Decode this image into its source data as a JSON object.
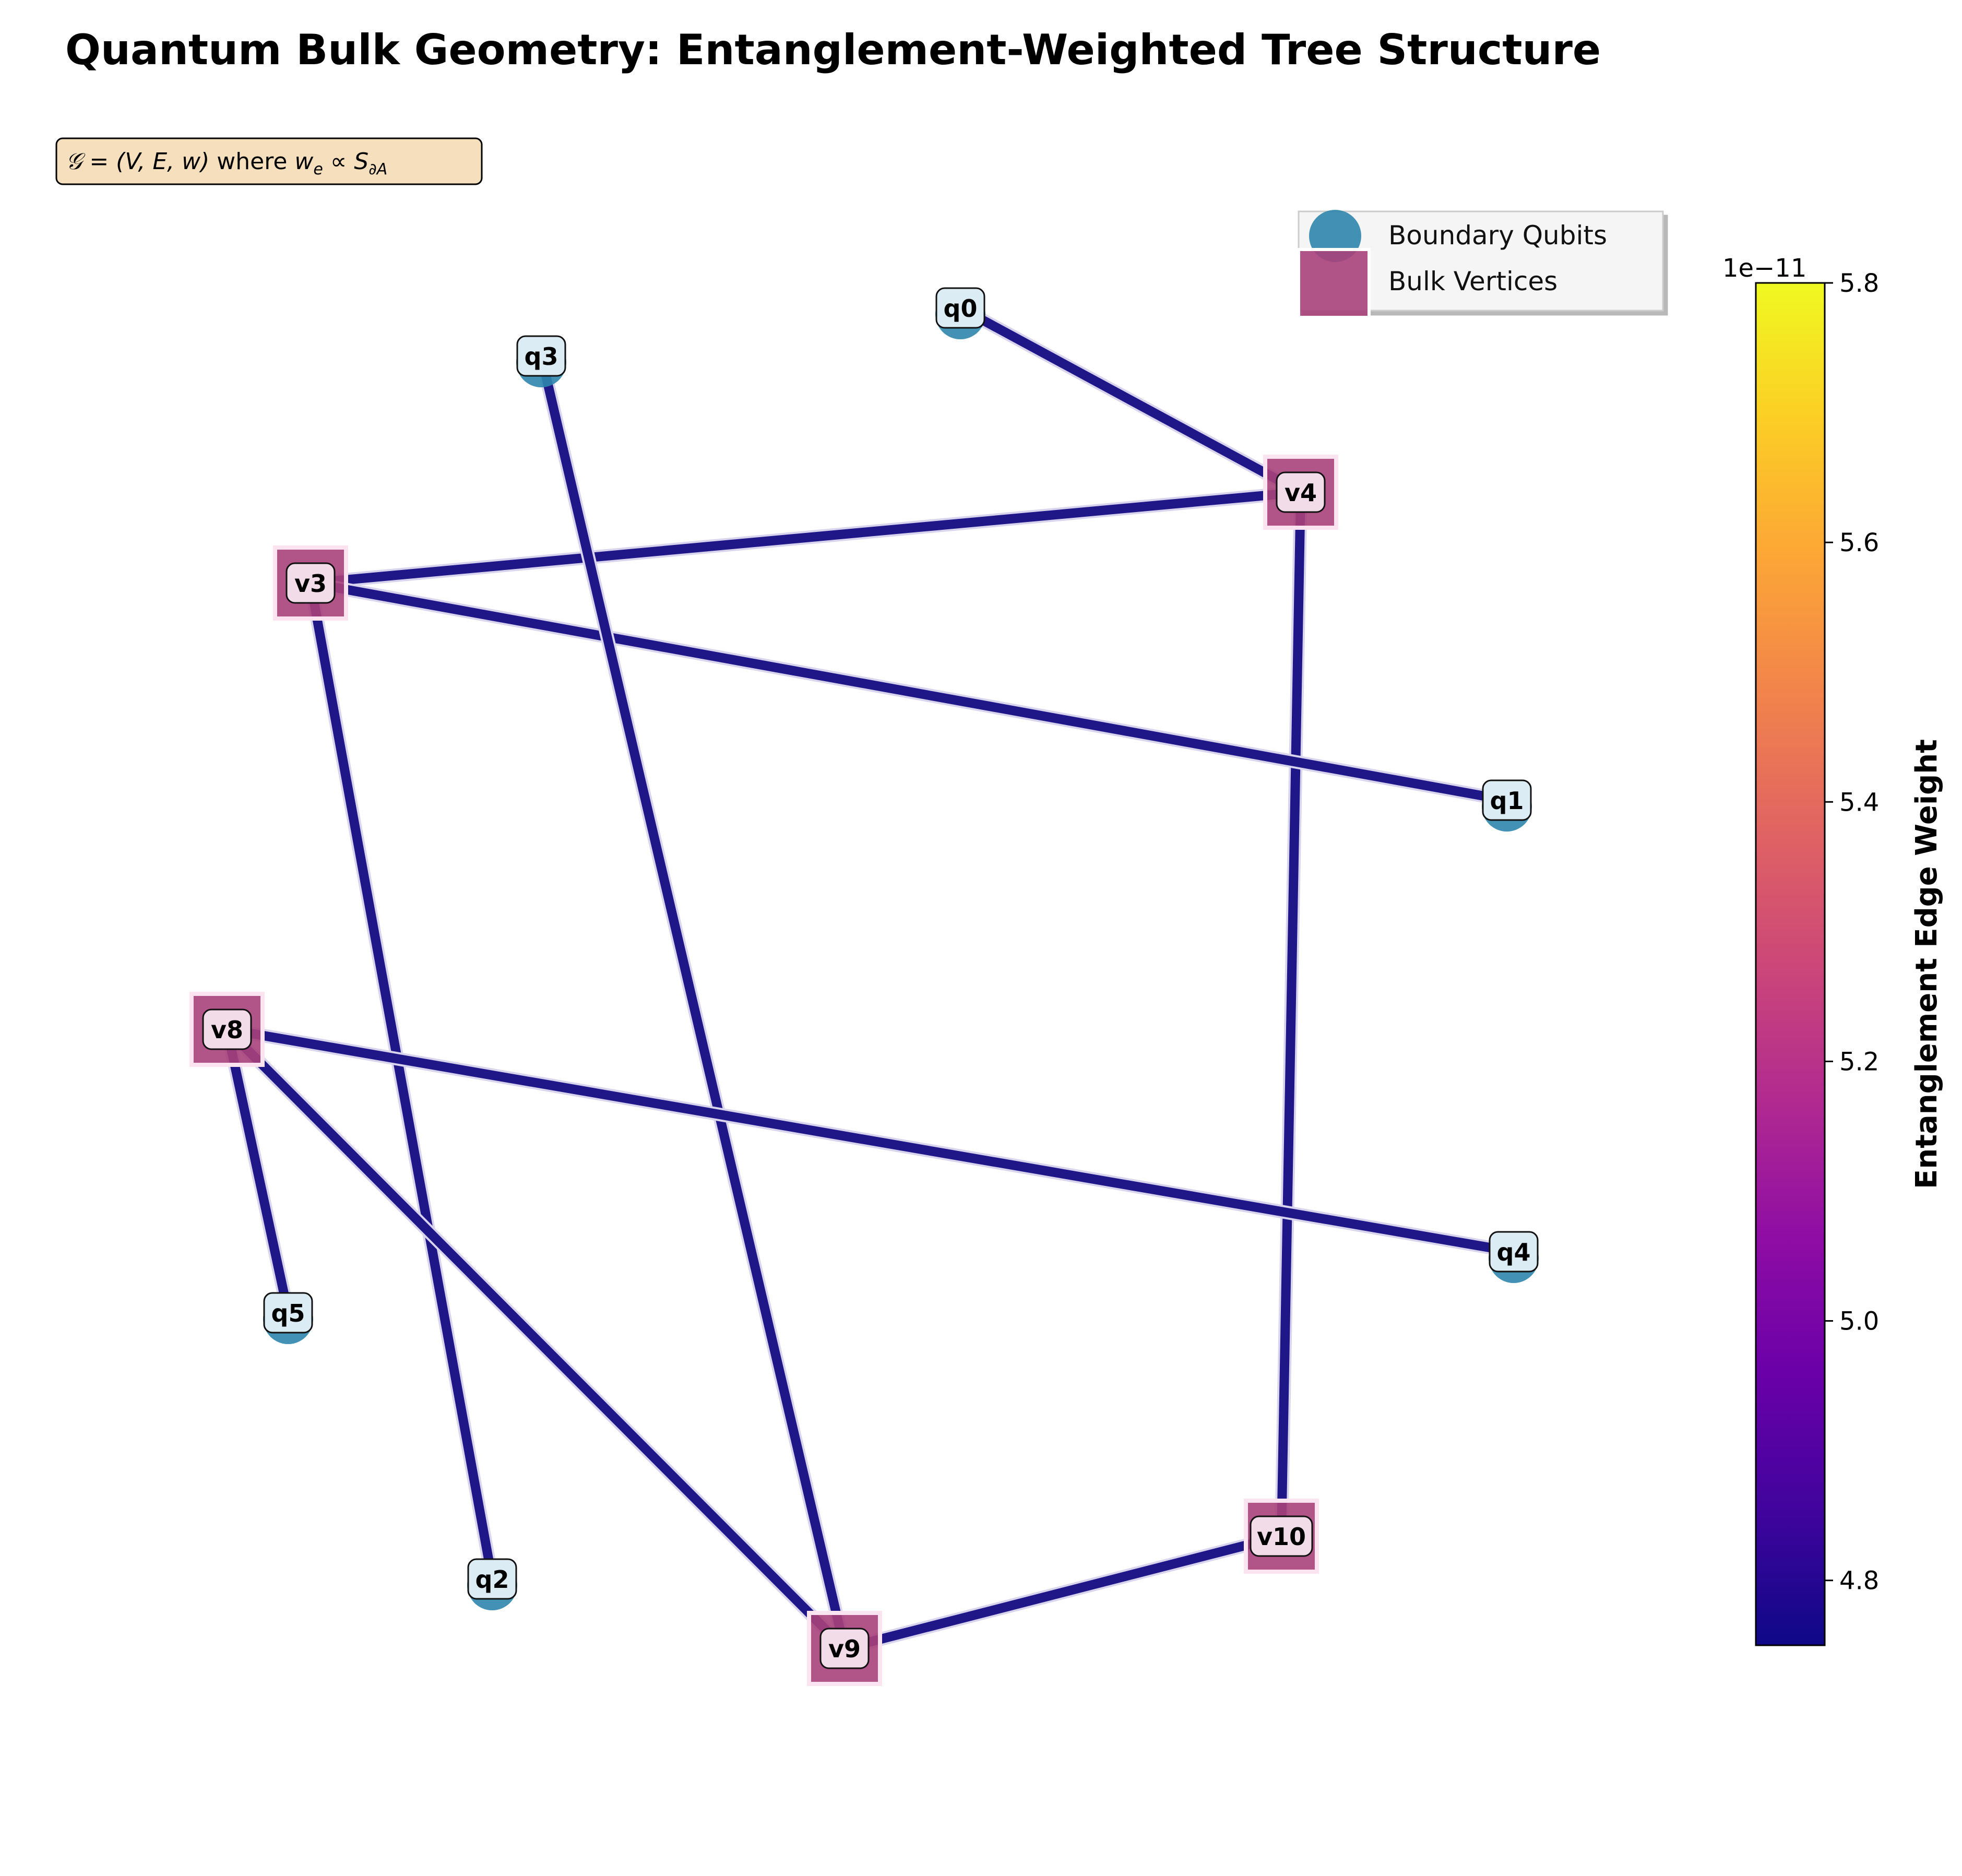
{
  "title": "Quantum Bulk Geometry: Entanglement-Weighted Tree Structure",
  "formula": {
    "lead": "𝒢 = (V, E, w)",
    "mid": " where ",
    "tail": "w",
    "sub_e": "e",
    "prop": " ∝ S",
    "sub_a": "∂A"
  },
  "legend": {
    "placement": "top-right",
    "entries": [
      {
        "label": "Boundary Qubits",
        "shape": "circle",
        "color": "#2f86ad"
      },
      {
        "label": "Bulk Vertices",
        "shape": "square",
        "color": "#a8417a"
      }
    ]
  },
  "colors": {
    "edge": "#1f1788",
    "boundary_node": "#2f86ad",
    "bulk_node": "#a8417a",
    "label_box": "#dcecf4",
    "formula_box": "#f6dfbc"
  },
  "colorbar": {
    "label": "Entanglement Edge Weight",
    "offset_text": "1e−11",
    "colormap": "plasma",
    "vmin": 4.75,
    "vmax": 5.8,
    "ticks": [
      "4.8",
      "5.0",
      "5.2",
      "5.4",
      "5.6",
      "5.8"
    ]
  },
  "nodes": [
    {
      "id": "q0",
      "type": "boundary"
    },
    {
      "id": "q1",
      "type": "boundary"
    },
    {
      "id": "q2",
      "type": "boundary"
    },
    {
      "id": "q3",
      "type": "boundary"
    },
    {
      "id": "q4",
      "type": "boundary"
    },
    {
      "id": "q5",
      "type": "boundary"
    },
    {
      "id": "v3",
      "type": "bulk"
    },
    {
      "id": "v4",
      "type": "bulk"
    },
    {
      "id": "v8",
      "type": "bulk"
    },
    {
      "id": "v9",
      "type": "bulk"
    },
    {
      "id": "v10",
      "type": "bulk"
    }
  ],
  "edges": [
    {
      "source": "q0",
      "target": "v4"
    },
    {
      "source": "v4",
      "target": "v3"
    },
    {
      "source": "v4",
      "target": "v10"
    },
    {
      "source": "v3",
      "target": "q1"
    },
    {
      "source": "v3",
      "target": "q2"
    },
    {
      "source": "q3",
      "target": "v9"
    },
    {
      "source": "v8",
      "target": "q4"
    },
    {
      "source": "v8",
      "target": "q5"
    },
    {
      "source": "v8",
      "target": "v9"
    },
    {
      "source": "v9",
      "target": "v10"
    }
  ]
}
